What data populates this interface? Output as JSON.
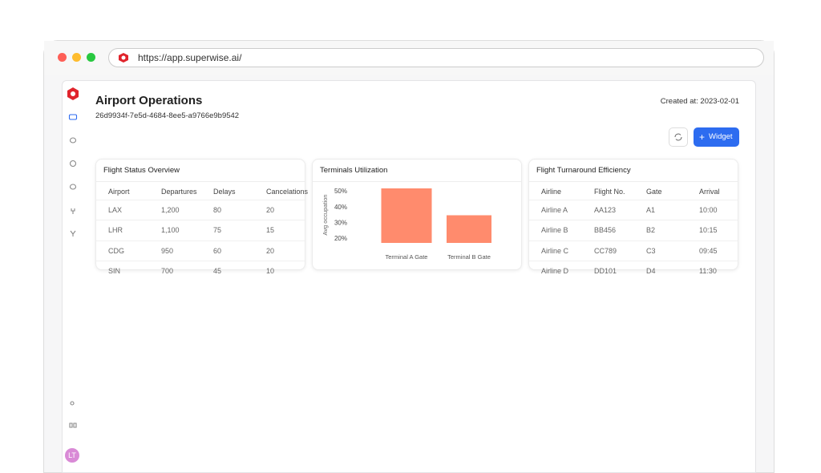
{
  "browser": {
    "url": "https://app.superwise.ai/"
  },
  "header": {
    "title": "Airport Operations",
    "id": "26d9934f-7e5d-4684-8ee5-a9766e9b9542",
    "created": "Created at: 2023-02-01",
    "button": "Widget"
  },
  "user": {
    "initials": "LT"
  },
  "tables": [
    {
      "title": "Flight Status Overview",
      "columns": [
        "Airport",
        "Departures",
        "Delays",
        "Cancelations"
      ],
      "rows": [
        [
          "LAX",
          "1,200",
          "80",
          "20"
        ],
        [
          "LHR",
          "1,100",
          "75",
          "15"
        ],
        [
          "CDG",
          "950",
          "60",
          "20"
        ],
        [
          "SIN",
          "700",
          "45",
          "10"
        ]
      ]
    },
    {
      "title": "Flight Turnaround Efficiency",
      "columns": [
        "Airline",
        "Flight No.",
        "Gate",
        "Arrival"
      ],
      "rows": [
        [
          "Airline A",
          "AA123",
          "A1",
          "10:00"
        ],
        [
          "Airline B",
          "BB456",
          "B2",
          "10:15"
        ],
        [
          "Airline C",
          "CC789",
          "C3",
          "09:45"
        ],
        [
          "Airline D",
          "DD101",
          "D4",
          "11:30"
        ]
      ]
    }
  ],
  "chart_data": {
    "type": "bar",
    "title": "Terminals Utilization",
    "y_label": "Avg occupation",
    "categories": [
      "Terminal A Gate",
      "Terminal B Gate"
    ],
    "values": [
      52,
      35
    ],
    "color": "#ff8b6d",
    "ylim": [
      17.5,
      52.5
    ],
    "yticks": [
      {
        "value": 20,
        "label": "20%"
      },
      {
        "value": 30,
        "label": "30%"
      },
      {
        "value": 40,
        "label": "40%"
      },
      {
        "value": 50,
        "label": "50%"
      }
    ],
    "grid": false
  }
}
